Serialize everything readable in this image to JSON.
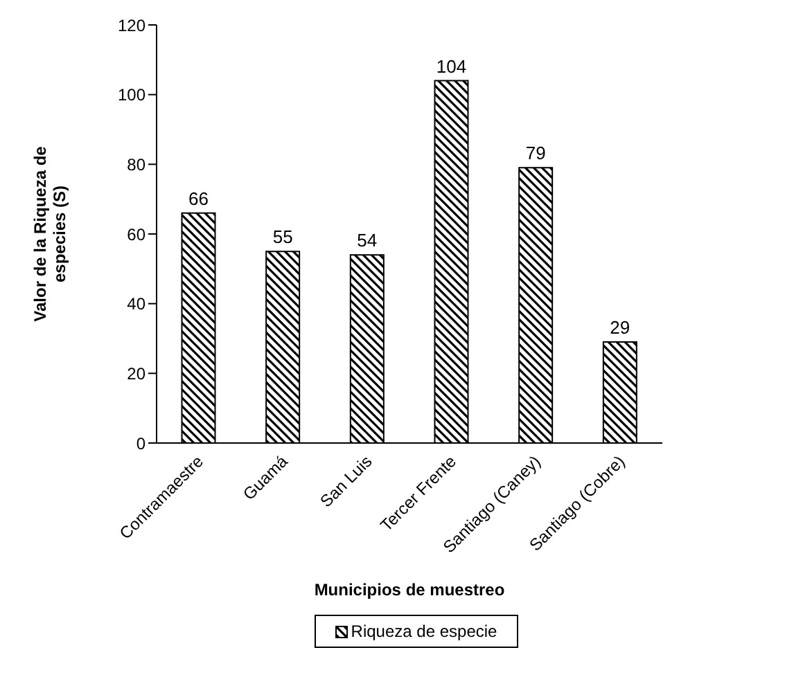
{
  "chart_data": {
    "type": "bar",
    "xlabel": "Municipios de muestreo",
    "ylabel": "Valor de la Riqueza de especies (S)",
    "categories": [
      "Contramaestre",
      "Guamá",
      "San Luis",
      "Tercer Frente",
      "Santiago (Caney)",
      "Santiago (Cobre)"
    ],
    "series": [
      {
        "name": "Riqueza de especie",
        "color": "#000000",
        "values": [
          66,
          55,
          54,
          104,
          79,
          29
        ]
      }
    ],
    "ylim": [
      0,
      120
    ],
    "yticks": [
      0,
      20,
      40,
      60,
      80,
      100,
      120
    ],
    "grid": false,
    "legend": "bottom",
    "data_labels": true
  }
}
